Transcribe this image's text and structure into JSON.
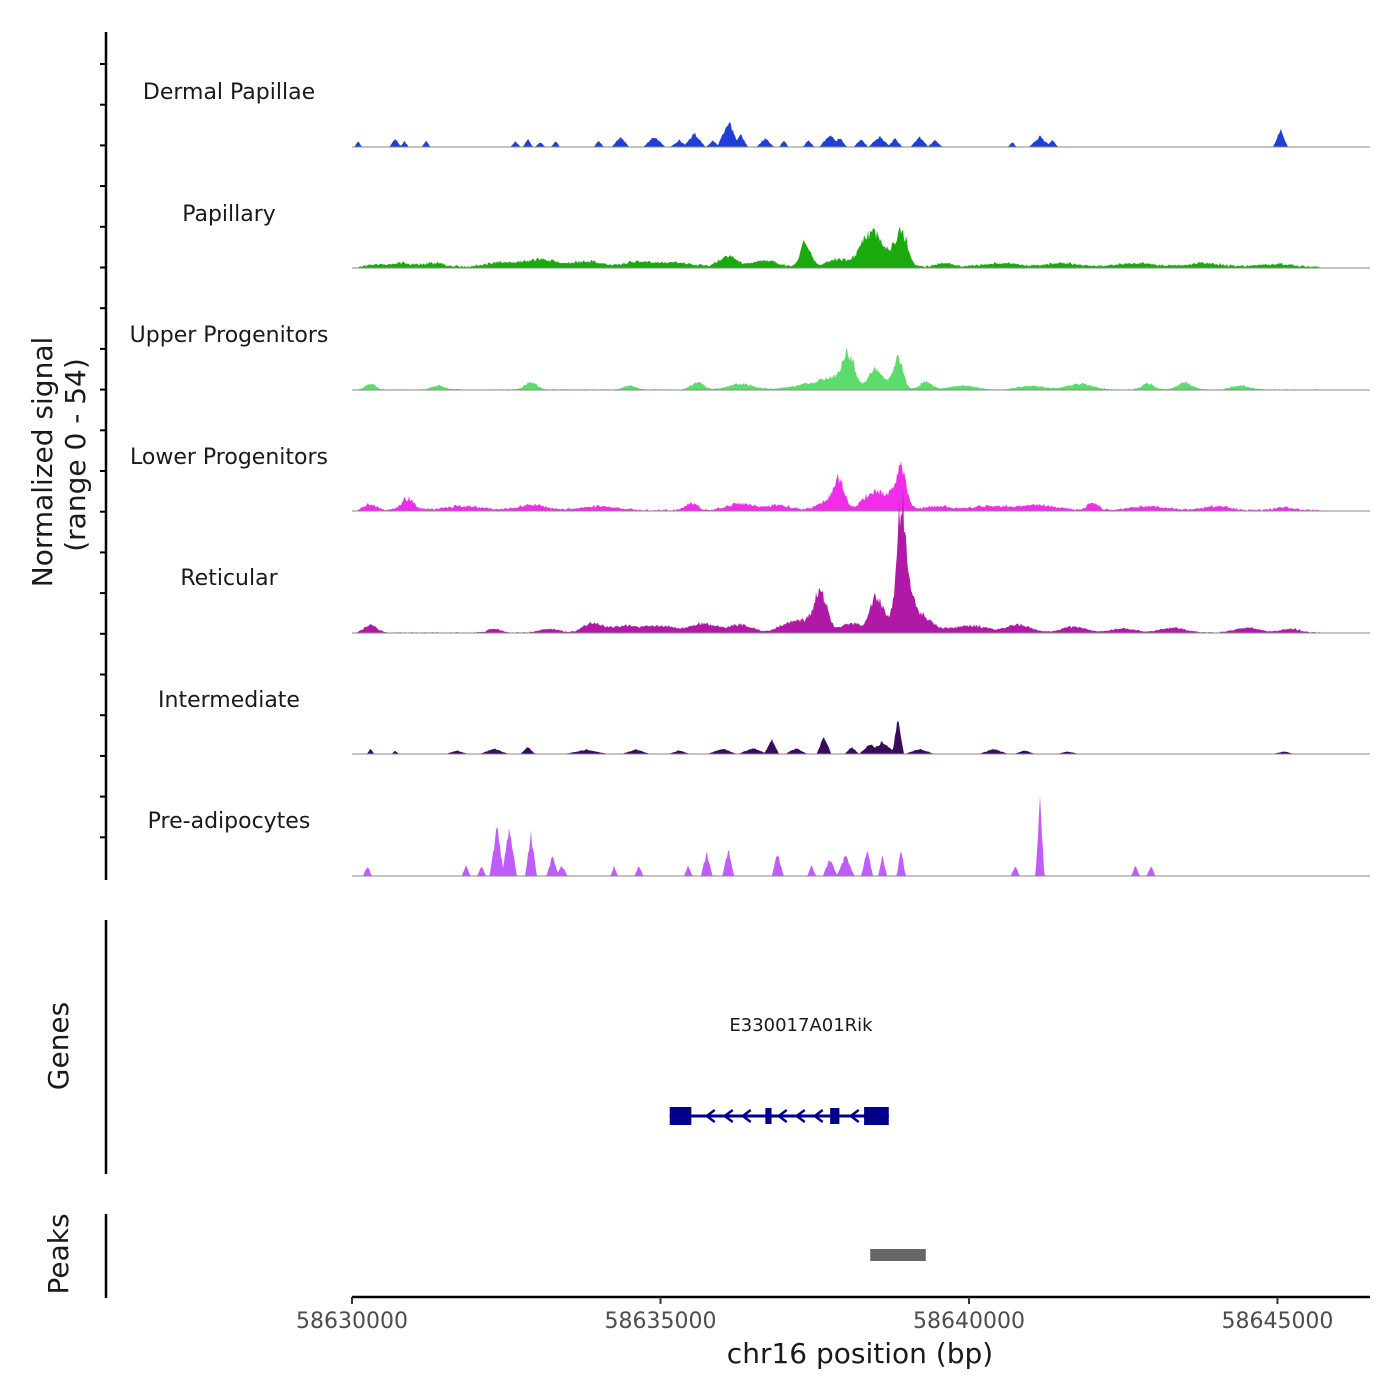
{
  "chart_data": {
    "type": "area",
    "title": "",
    "ylabel_line1": "Normalized signal",
    "ylabel_line2": "(range 0 - 54)",
    "ylim": [
      0,
      54
    ],
    "xlabel": "chr16 position (bp)",
    "xlim": [
      58630000,
      58646500
    ],
    "x_ticks": [
      58630000,
      58635000,
      58640000,
      58645000
    ],
    "x_tick_labels": [
      "58630000",
      "58635000",
      "58640000",
      "58645000"
    ],
    "colors": {
      "dermal_papillae": "#1f3fd6",
      "papillary": "#1aaa0e",
      "upper_progenitors": "#5ddc6e",
      "lower_progenitors": "#f02ee9",
      "reticular": "#b018a6",
      "intermediate": "#3a0a5c",
      "pre_adipocytes": "#c05cfa",
      "gene": "#00008b",
      "peak": "#666666",
      "baseline": "#888888"
    },
    "series": [
      {
        "name": "Dermal Papillae",
        "color_key": "dermal_papillae",
        "scale": 0.8,
        "sparse": true,
        "bg": 0,
        "peaks": [
          [
            58630100,
            50,
            0.35
          ],
          [
            58630700,
            80,
            0.5
          ],
          [
            58630850,
            60,
            0.35
          ],
          [
            58631200,
            60,
            0.35
          ],
          [
            58632650,
            70,
            0.35
          ],
          [
            58632850,
            70,
            0.45
          ],
          [
            58633050,
            70,
            0.3
          ],
          [
            58633300,
            60,
            0.35
          ],
          [
            58634000,
            70,
            0.35
          ],
          [
            58634350,
            120,
            0.6
          ],
          [
            58634900,
            150,
            0.6
          ],
          [
            58635300,
            120,
            0.4
          ],
          [
            58635550,
            150,
            0.8
          ],
          [
            58635850,
            100,
            0.35
          ],
          [
            58636100,
            150,
            1.5
          ],
          [
            58636300,
            100,
            0.7
          ],
          [
            58636700,
            120,
            0.5
          ],
          [
            58637000,
            60,
            0.4
          ],
          [
            58637400,
            80,
            0.4
          ],
          [
            58637750,
            150,
            0.7
          ],
          [
            58637900,
            100,
            0.55
          ],
          [
            58638250,
            100,
            0.45
          ],
          [
            58638550,
            150,
            0.6
          ],
          [
            58638800,
            100,
            0.5
          ],
          [
            58639200,
            120,
            0.6
          ],
          [
            58639450,
            100,
            0.4
          ],
          [
            58640700,
            60,
            0.3
          ],
          [
            58641150,
            150,
            0.6
          ],
          [
            58641350,
            80,
            0.4
          ],
          [
            58645050,
            100,
            1.0
          ]
        ]
      },
      {
        "name": "Papillary",
        "color_key": "papillary",
        "scale": 0.8,
        "sparse": false,
        "bg": 0.1,
        "bg_start": 58630100,
        "bg_end": 58645700,
        "peaks": [
          [
            58630400,
            150,
            0.15
          ],
          [
            58630800,
            150,
            0.2
          ],
          [
            58631300,
            200,
            0.2
          ],
          [
            58632500,
            300,
            0.25
          ],
          [
            58633100,
            200,
            0.4
          ],
          [
            58633800,
            250,
            0.3
          ],
          [
            58634600,
            200,
            0.25
          ],
          [
            58635200,
            300,
            0.25
          ],
          [
            58636100,
            150,
            0.55
          ],
          [
            58636700,
            200,
            0.35
          ],
          [
            58637350,
            80,
            1.3
          ],
          [
            58637900,
            200,
            0.4
          ],
          [
            58638500,
            150,
            1.6
          ],
          [
            58638900,
            100,
            1.9
          ],
          [
            58638300,
            120,
            0.7
          ],
          [
            58639600,
            150,
            0.2
          ],
          [
            58640500,
            300,
            0.2
          ],
          [
            58641500,
            300,
            0.2
          ],
          [
            58642700,
            300,
            0.2
          ],
          [
            58643800,
            300,
            0.2
          ],
          [
            58645000,
            300,
            0.15
          ]
        ]
      },
      {
        "name": "Upper Progenitors",
        "color_key": "upper_progenitors",
        "scale": 0.8,
        "sparse": false,
        "bg": 0.05,
        "bg_start": 58630100,
        "bg_end": 58645700,
        "peaks": [
          [
            58630300,
            80,
            0.3
          ],
          [
            58631400,
            100,
            0.2
          ],
          [
            58632900,
            100,
            0.35
          ],
          [
            58634500,
            100,
            0.2
          ],
          [
            58635600,
            100,
            0.35
          ],
          [
            58636300,
            200,
            0.3
          ],
          [
            58637400,
            300,
            0.25
          ],
          [
            58637800,
            200,
            0.5
          ],
          [
            58638050,
            100,
            1.6
          ],
          [
            58638500,
            120,
            1.1
          ],
          [
            58638850,
            80,
            1.6
          ],
          [
            58639300,
            100,
            0.4
          ],
          [
            58639900,
            200,
            0.2
          ],
          [
            58641000,
            200,
            0.2
          ],
          [
            58641800,
            200,
            0.3
          ],
          [
            58642900,
            100,
            0.3
          ],
          [
            58643500,
            120,
            0.35
          ],
          [
            58644400,
            150,
            0.2
          ]
        ]
      },
      {
        "name": "Lower Progenitors",
        "color_key": "lower_progenitors",
        "scale": 0.8,
        "sparse": false,
        "bg": 0.1,
        "bg_start": 58630100,
        "bg_end": 58645700,
        "peaks": [
          [
            58630300,
            100,
            0.3
          ],
          [
            58630900,
            100,
            0.6
          ],
          [
            58631800,
            300,
            0.2
          ],
          [
            58632900,
            250,
            0.25
          ],
          [
            58634000,
            300,
            0.2
          ],
          [
            58635500,
            100,
            0.35
          ],
          [
            58636300,
            200,
            0.35
          ],
          [
            58636900,
            200,
            0.25
          ],
          [
            58637900,
            80,
            1.5
          ],
          [
            58637700,
            150,
            0.5
          ],
          [
            58638400,
            150,
            0.65
          ],
          [
            58638900,
            80,
            1.8
          ],
          [
            58638700,
            200,
            0.7
          ],
          [
            58639500,
            200,
            0.2
          ],
          [
            58640300,
            300,
            0.2
          ],
          [
            58641100,
            300,
            0.25
          ],
          [
            58642000,
            80,
            0.4
          ],
          [
            58642900,
            300,
            0.2
          ],
          [
            58644000,
            200,
            0.2
          ],
          [
            58645100,
            150,
            0.15
          ]
        ]
      },
      {
        "name": "Reticular",
        "color_key": "reticular",
        "scale": 0.8,
        "sparse": false,
        "bg": 0.05,
        "bg_start": 58630100,
        "bg_end": 58645700,
        "peaks": [
          [
            58630300,
            100,
            0.4
          ],
          [
            58632300,
            100,
            0.2
          ],
          [
            58633200,
            150,
            0.2
          ],
          [
            58633900,
            150,
            0.5
          ],
          [
            58634400,
            200,
            0.35
          ],
          [
            58635000,
            250,
            0.35
          ],
          [
            58635700,
            200,
            0.45
          ],
          [
            58636300,
            200,
            0.4
          ],
          [
            58637050,
            150,
            0.4
          ],
          [
            58637600,
            100,
            1.8
          ],
          [
            58637400,
            200,
            0.6
          ],
          [
            58638100,
            150,
            0.5
          ],
          [
            58638500,
            100,
            1.8
          ],
          [
            58638900,
            60,
            4.5
          ],
          [
            58638950,
            150,
            2.5
          ],
          [
            58639300,
            150,
            0.6
          ],
          [
            58640000,
            300,
            0.35
          ],
          [
            58640800,
            200,
            0.4
          ],
          [
            58641700,
            200,
            0.3
          ],
          [
            58642500,
            200,
            0.2
          ],
          [
            58643300,
            200,
            0.25
          ],
          [
            58644500,
            200,
            0.25
          ],
          [
            58645200,
            150,
            0.2
          ]
        ]
      },
      {
        "name": "Intermediate",
        "color_key": "intermediate",
        "scale": 0.8,
        "sparse": true,
        "bg": 0,
        "peaks": [
          [
            58630300,
            50,
            0.3
          ],
          [
            58630700,
            50,
            0.2
          ],
          [
            58631700,
            150,
            0.2
          ],
          [
            58632300,
            200,
            0.3
          ],
          [
            58632850,
            100,
            0.4
          ],
          [
            58633800,
            300,
            0.25
          ],
          [
            58634600,
            200,
            0.25
          ],
          [
            58635300,
            150,
            0.2
          ],
          [
            58636000,
            200,
            0.3
          ],
          [
            58636500,
            200,
            0.35
          ],
          [
            58636800,
            100,
            0.85
          ],
          [
            58637200,
            150,
            0.35
          ],
          [
            58637650,
            100,
            1.0
          ],
          [
            58638100,
            100,
            0.4
          ],
          [
            58638400,
            150,
            0.6
          ],
          [
            58638850,
            80,
            2.0
          ],
          [
            58638600,
            200,
            0.7
          ],
          [
            58639200,
            200,
            0.3
          ],
          [
            58640400,
            200,
            0.3
          ],
          [
            58640900,
            150,
            0.2
          ],
          [
            58641600,
            150,
            0.15
          ],
          [
            58645100,
            150,
            0.15
          ]
        ]
      },
      {
        "name": "Pre-adipocytes",
        "color_key": "pre_adipocytes",
        "scale": 0.8,
        "sparse": true,
        "bg": 0,
        "peaks": [
          [
            58630250,
            60,
            0.6
          ],
          [
            58631850,
            60,
            0.6
          ],
          [
            58632100,
            60,
            0.6
          ],
          [
            58632350,
            100,
            2.8
          ],
          [
            58632550,
            100,
            2.8
          ],
          [
            58632900,
            80,
            2.4
          ],
          [
            58633250,
            80,
            1.2
          ],
          [
            58633400,
            80,
            0.6
          ],
          [
            58634250,
            50,
            0.6
          ],
          [
            58634650,
            60,
            0.6
          ],
          [
            58635450,
            60,
            0.6
          ],
          [
            58635750,
            80,
            1.3
          ],
          [
            58636100,
            80,
            1.5
          ],
          [
            58636900,
            80,
            1.3
          ],
          [
            58637450,
            60,
            0.6
          ],
          [
            58637750,
            100,
            1.0
          ],
          [
            58638000,
            120,
            1.2
          ],
          [
            58638350,
            80,
            1.5
          ],
          [
            58638600,
            60,
            1.2
          ],
          [
            58638900,
            60,
            1.6
          ],
          [
            58640750,
            60,
            0.6
          ],
          [
            58641150,
            60,
            4.4
          ],
          [
            58642700,
            60,
            0.6
          ],
          [
            58642950,
            60,
            0.6
          ]
        ]
      }
    ],
    "genes_label": "Genes",
    "gene": {
      "name": "E330017A01Rik",
      "start": 58635150,
      "end": 58638700,
      "strand": "-",
      "exons": [
        [
          58635150,
          58635500
        ],
        [
          58636700,
          58636800
        ],
        [
          58637750,
          58637900
        ],
        [
          58638300,
          58638700
        ]
      ]
    },
    "peaks_label": "Peaks",
    "peak_regions": [
      [
        58638400,
        58639300
      ]
    ]
  }
}
